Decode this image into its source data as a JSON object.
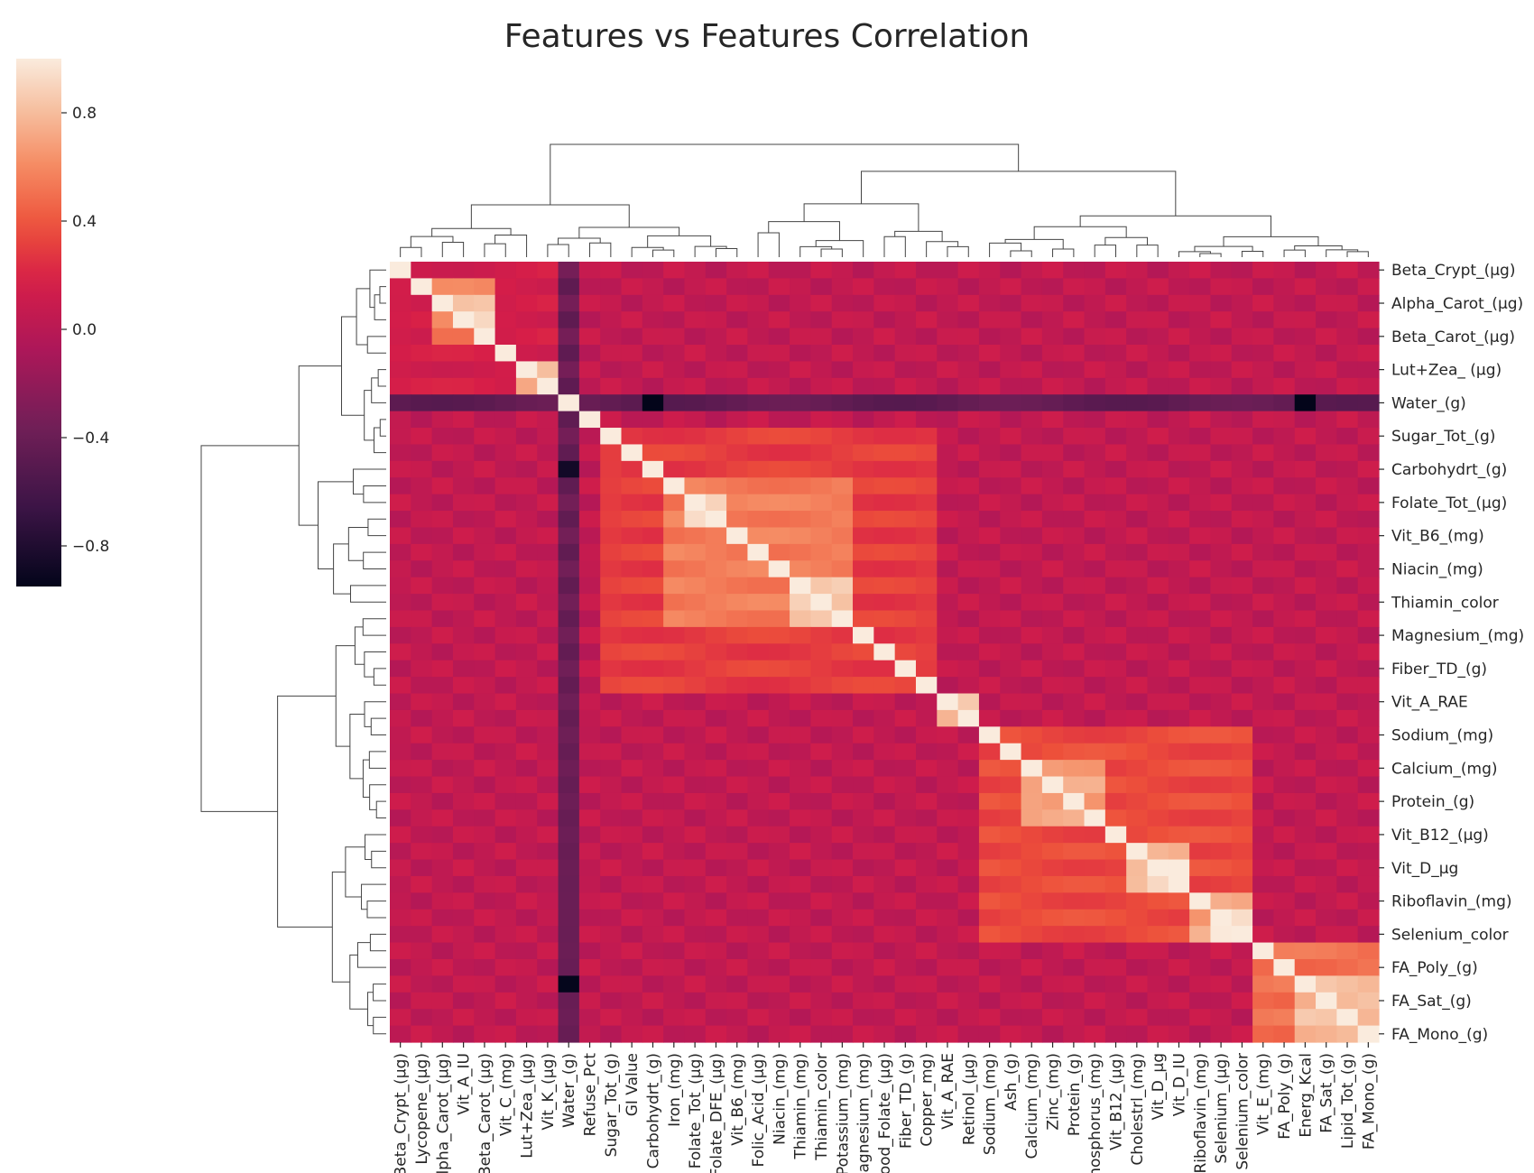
{
  "chart_data": {
    "type": "heatmap",
    "title": "Features vs Features Correlation",
    "xlabel": "",
    "ylabel": "",
    "colormap": "rocket",
    "vmin": -0.95,
    "vmax": 1.0,
    "colorbar": {
      "ticks": [
        0.8,
        0.4,
        0.0,
        -0.4,
        -0.8
      ],
      "tick_labels": [
        "0.8",
        "0.4",
        "0.0",
        "−0.4",
        "−0.8"
      ],
      "placement": "top-left"
    },
    "dendrograms": {
      "row": "left",
      "column": "top"
    },
    "x_tick_labels": [
      "Beta_Crypt_(µg)",
      "Lycopene_(µg)",
      "Alpha_Carot_(µg)",
      "Vit_A_IU",
      "Beta_Carot_(µg)",
      "Vit_C_(mg)",
      "Lut+Zea_(µg)",
      "Vit_K_(µg)",
      "Water_(g)",
      "Refuse_Pct",
      "Sugar_Tot_(g)",
      "GI Value",
      "Carbohydrt_(g)",
      "Iron_(mg)",
      "Folate_Tot_(µg)",
      "Folate_DFE_(µg)",
      "Vit_B6_(mg)",
      "Folic_Acid_(µg)",
      "Niacin_(mg)",
      "Thiamin_(mg)",
      "Thiamin_color",
      "Potassium_(mg)",
      "Magnesium_(mg)",
      "Food_Folate_(µg)",
      "Fiber_TD_(g)",
      "Copper_mg)",
      "Vit_A_RAE",
      "Retinol_(µg)",
      "Sodium_(mg)",
      "Ash_(g)",
      "Calcium_(mg)",
      "Zinc_(mg)",
      "Protein_(g)",
      "Phosphorus_(mg)",
      "Vit_B12_(µg)",
      "Cholestrl_(mg)",
      "Vit_D_µg",
      "Vit_D_IU",
      "Riboflavin_(mg)",
      "Selenium_(µg)",
      "Selenium_color",
      "Vit_E_(mg)",
      "FA_Poly_(g)",
      "Energ_Kcal",
      "FA_Sat_(g)",
      "Lipid_Tot_(g)",
      "FA_Mono_(g)"
    ],
    "y_tick_labels": [
      "Beta_Crypt_(µg)",
      "Alpha_Carot_(µg)",
      "Beta_Carot_(µg)",
      "Lut+Zea_ (µg)",
      "Water_(g)",
      "Sugar_Tot_(g)",
      "Carbohydrt_(g)",
      "Folate_Tot_(µg)",
      "Vit_B6_(mg)",
      "Niacin_(mg)",
      "Thiamin_color",
      "Magnesium_(mg)",
      "Fiber_TD_(g)",
      "Vit_A_RAE",
      "Sodium_(mg)",
      "Calcium_(mg)",
      "Protein_(g)",
      "Vit_B12_(µg)",
      "Vit_D_µg",
      "Riboflavin_(mg)",
      "Selenium_color",
      "FA_Poly_(g)",
      "FA_Sat_(g)",
      "FA_Mono_(g)"
    ],
    "blocks": [
      {
        "rows": [
          0,
          8
        ],
        "cols": [
          0,
          8
        ],
        "value": 0.15
      },
      {
        "rows": [
          1,
          5
        ],
        "cols": [
          2,
          5
        ],
        "value": 0.55
      },
      {
        "rows": [
          2,
          4
        ],
        "cols": [
          3,
          5
        ],
        "value": 0.88
      },
      {
        "rows": [
          6,
          8
        ],
        "cols": [
          6,
          8
        ],
        "value": 0.75
      },
      {
        "rows": [
          8,
          9
        ],
        "cols": [
          0,
          47
        ],
        "value": -0.45
      },
      {
        "rows": [
          0,
          47
        ],
        "cols": [
          8,
          9
        ],
        "value": -0.4
      },
      {
        "rows": [
          10,
          26
        ],
        "cols": [
          10,
          26
        ],
        "value": 0.3
      },
      {
        "rows": [
          13,
          22
        ],
        "cols": [
          13,
          22
        ],
        "value": 0.55
      },
      {
        "rows": [
          14,
          16
        ],
        "cols": [
          14,
          16
        ],
        "value": 0.9
      },
      {
        "rows": [
          19,
          22
        ],
        "cols": [
          19,
          22
        ],
        "value": 0.85
      },
      {
        "rows": [
          26,
          28
        ],
        "cols": [
          26,
          28
        ],
        "value": 0.8
      },
      {
        "rows": [
          28,
          41
        ],
        "cols": [
          28,
          41
        ],
        "value": 0.35
      },
      {
        "rows": [
          30,
          34
        ],
        "cols": [
          30,
          34
        ],
        "value": 0.7
      },
      {
        "rows": [
          35,
          38
        ],
        "cols": [
          35,
          38
        ],
        "value": 0.8
      },
      {
        "rows": [
          36,
          38
        ],
        "cols": [
          36,
          38
        ],
        "value": 0.95
      },
      {
        "rows": [
          38,
          41
        ],
        "cols": [
          38,
          41
        ],
        "value": 0.7
      },
      {
        "rows": [
          39,
          41
        ],
        "cols": [
          39,
          41
        ],
        "value": 0.95
      },
      {
        "rows": [
          41,
          47
        ],
        "cols": [
          41,
          47
        ],
        "value": 0.5
      },
      {
        "rows": [
          43,
          47
        ],
        "cols": [
          43,
          47
        ],
        "value": 0.8
      },
      {
        "rows": [
          8,
          9
        ],
        "cols": [
          12,
          13
        ],
        "value": -0.92
      },
      {
        "rows": [
          12,
          13
        ],
        "cols": [
          8,
          9
        ],
        "value": -0.92
      },
      {
        "rows": [
          8,
          9
        ],
        "cols": [
          43,
          44
        ],
        "value": -0.95
      },
      {
        "rows": [
          43,
          44
        ],
        "cols": [
          8,
          9
        ],
        "value": -0.95
      }
    ],
    "off_diagonal_value": 0.05,
    "diagonal_value": 1.0
  }
}
